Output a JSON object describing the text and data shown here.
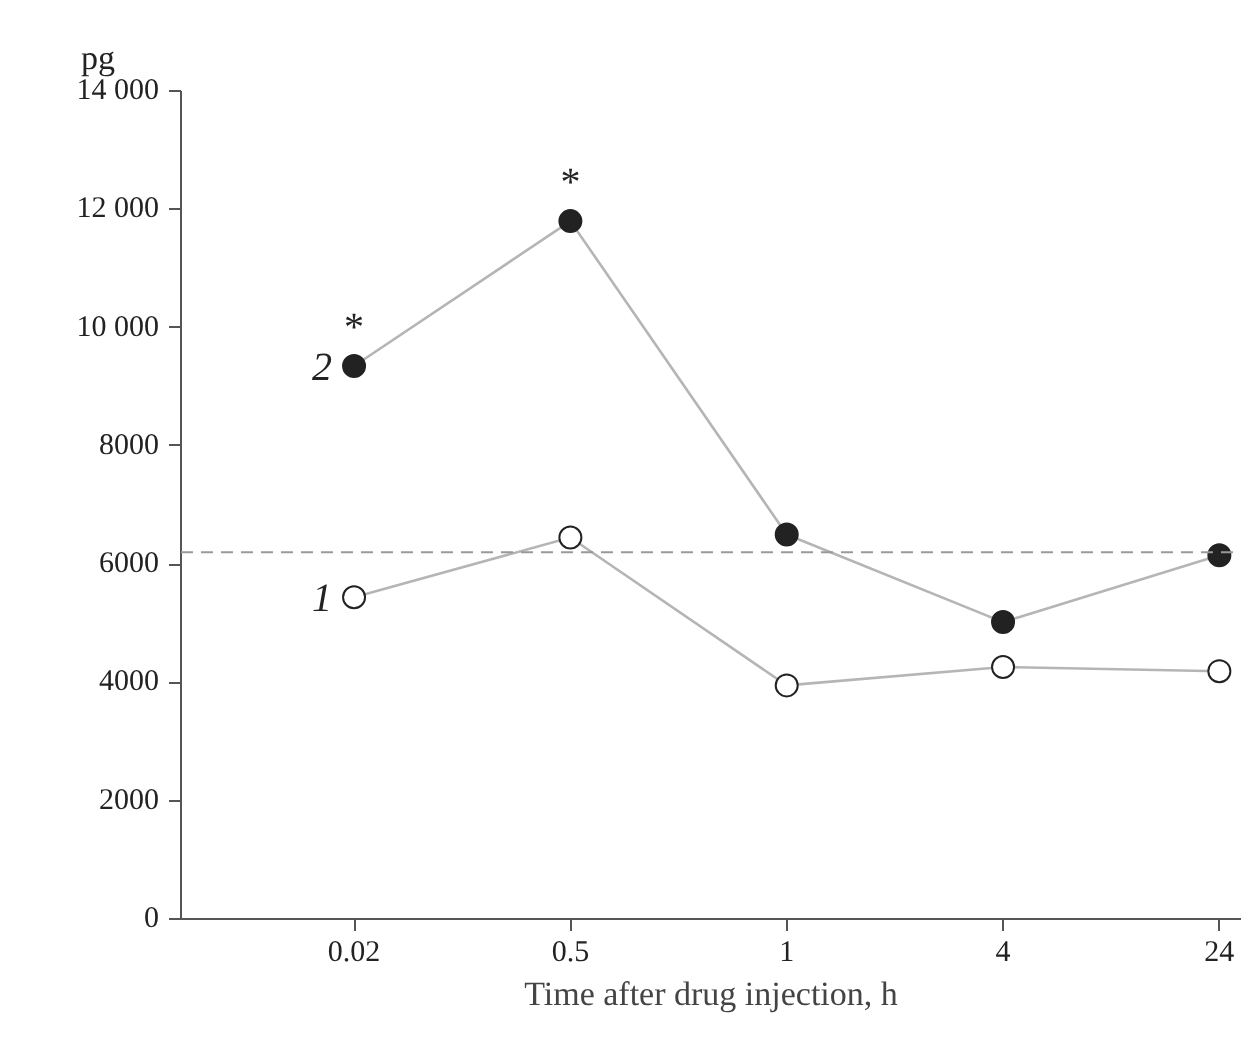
{
  "chart_data": {
    "type": "line",
    "ylabel": "pg",
    "xlabel": "Time after drug injection, h",
    "categories": [
      "0.02",
      "0.5",
      "1",
      "4",
      "24"
    ],
    "series": [
      {
        "name": "1",
        "color": "#ffffff",
        "values": [
          5440,
          6450,
          3950,
          4260,
          4190
        ]
      },
      {
        "name": "2",
        "color": "#222222",
        "values": [
          9350,
          11800,
          6500,
          5020,
          6150
        ]
      }
    ],
    "ylim": [
      0,
      14000
    ],
    "yticks": [
      0,
      2000,
      4000,
      6000,
      8000,
      {
        "value": 10000,
        "label": "10 000"
      },
      {
        "value": 12000,
        "label": "12 000"
      },
      {
        "value": 14000,
        "label": "14 000"
      }
    ],
    "ref_lines": [
      {
        "axis": "y",
        "value": 6200,
        "color": "#999999",
        "line_style": "dashed"
      }
    ],
    "annotations": [
      {
        "text": "*",
        "x": "0.02",
        "y": 9350
      },
      {
        "text": "*",
        "x": "0.5",
        "y": 11800
      }
    ],
    "marker": "circle",
    "grid": false
  }
}
